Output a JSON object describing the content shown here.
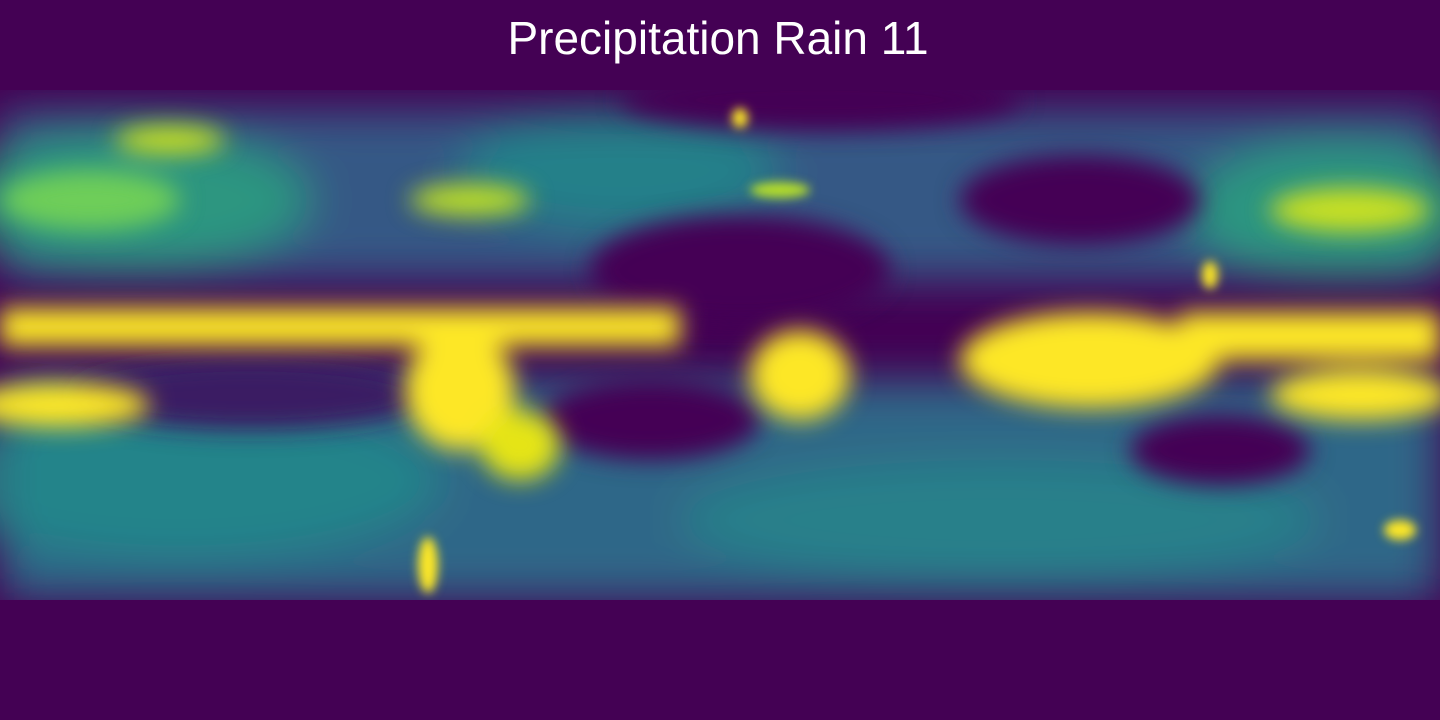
{
  "title": "Precipitation Rain 11",
  "colormap": {
    "name": "viridis",
    "low": "#440154",
    "mid": "#21918c",
    "high": "#fde725"
  },
  "map": {
    "projection": "equirectangular",
    "extent": "global",
    "background_color": "#440154"
  }
}
